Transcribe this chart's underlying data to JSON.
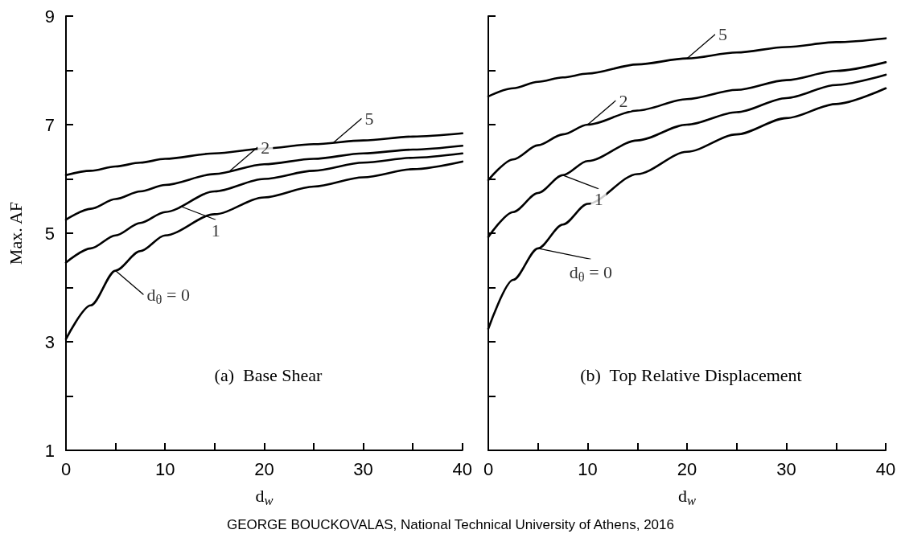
{
  "chart_data": [
    {
      "type": "line",
      "title": "(a)  Base Shear",
      "xlabel": "d$_{w}$",
      "ylabel": "Max. AF",
      "x": [
        0,
        2.5,
        5,
        7.5,
        10,
        15,
        20,
        25,
        30,
        35,
        40
      ],
      "series": [
        {
          "color": "#000000",
          "values": [
            3.05,
            3.67,
            4.31,
            4.67,
            4.96,
            5.35,
            5.66,
            5.86,
            6.03,
            6.18,
            6.32
          ]
        },
        {
          "color": "#000000",
          "values": [
            4.46,
            4.72,
            4.96,
            5.19,
            5.39,
            5.77,
            6.0,
            6.15,
            6.3,
            6.39,
            6.47
          ]
        },
        {
          "color": "#000000",
          "values": [
            5.25,
            5.45,
            5.63,
            5.77,
            5.89,
            6.09,
            6.27,
            6.37,
            6.47,
            6.54,
            6.61
          ]
        },
        {
          "color": "#000000",
          "values": [
            6.07,
            6.15,
            6.23,
            6.3,
            6.37,
            6.47,
            6.56,
            6.64,
            6.71,
            6.78,
            6.84
          ]
        }
      ],
      "xlim": [
        0,
        40
      ],
      "xticks": [
        0,
        {
          "value": 5,
          "label": null
        },
        10,
        {
          "value": 15,
          "label": null
        },
        20,
        {
          "value": 25,
          "label": null
        },
        30,
        {
          "value": 35,
          "label": null
        },
        40
      ],
      "ylim": [
        1,
        9
      ],
      "yticks": [
        1,
        {
          "value": 2,
          "label": null
        },
        3,
        {
          "value": 4,
          "label": null
        },
        5,
        {
          "value": 6,
          "label": null
        },
        7,
        {
          "value": 8,
          "label": null
        },
        9
      ],
      "annotations": [
        {
          "text": "5",
          "x": 27,
          "y": 6.67
        },
        {
          "text": "2",
          "x": 16.5,
          "y": 6.14
        },
        {
          "text": "1",
          "x": 11.5,
          "y": 5.5
        },
        {
          "text": "d$_{θ}$ = 0",
          "x": 5,
          "y": 4.31
        },
        "GEORGE BOUCKOVALAS, National Technical University of Athens, 2016"
      ],
      "grid": false,
      "marker": "none",
      "line_style": "solid"
    },
    {
      "type": "line",
      "title": "(b)  Top Relative Displacement",
      "xlabel": "d$_{w}$",
      "x": [
        0,
        2.5,
        5,
        7.5,
        10,
        15,
        20,
        25,
        30,
        35,
        40
      ],
      "series": [
        {
          "color": "#000000",
          "values": [
            3.24,
            4.14,
            4.72,
            5.16,
            5.54,
            6.09,
            6.5,
            6.82,
            7.12,
            7.38,
            7.67
          ]
        },
        {
          "color": "#000000",
          "values": [
            4.93,
            5.39,
            5.74,
            6.07,
            6.33,
            6.71,
            7.0,
            7.23,
            7.49,
            7.73,
            7.92
          ]
        },
        {
          "color": "#000000",
          "values": [
            5.98,
            6.36,
            6.62,
            6.82,
            7.0,
            7.26,
            7.47,
            7.64,
            7.82,
            7.99,
            8.15
          ]
        },
        {
          "color": "#000000",
          "values": [
            7.52,
            7.67,
            7.79,
            7.87,
            7.94,
            8.11,
            8.22,
            8.33,
            8.43,
            8.52,
            8.59
          ]
        }
      ],
      "xlim": [
        0,
        40
      ],
      "xticks": [
        0,
        {
          "value": 5,
          "label": null
        },
        10,
        {
          "value": 15,
          "label": null
        },
        20,
        {
          "value": 25,
          "label": null
        },
        30,
        {
          "value": 35,
          "label": null
        },
        40
      ],
      "ylim": [
        1,
        9
      ],
      "yticks": [
        1,
        {
          "value": 2,
          "label": null
        },
        3,
        {
          "value": 4,
          "label": null
        },
        5,
        {
          "value": 6,
          "label": null
        },
        7,
        {
          "value": 8,
          "label": null
        },
        9
      ],
      "tick_labels": "x",
      "annotations": [
        {
          "text": "5",
          "x": 20,
          "y": 8.22
        },
        {
          "text": "2",
          "x": 10,
          "y": 7.0
        },
        {
          "text": "1",
          "x": 7.5,
          "y": 6.07
        },
        {
          "text": "d$_{θ}$ = 0",
          "x": 5,
          "y": 4.72
        }
      ],
      "grid": false,
      "marker": "none",
      "line_style": "solid"
    }
  ]
}
